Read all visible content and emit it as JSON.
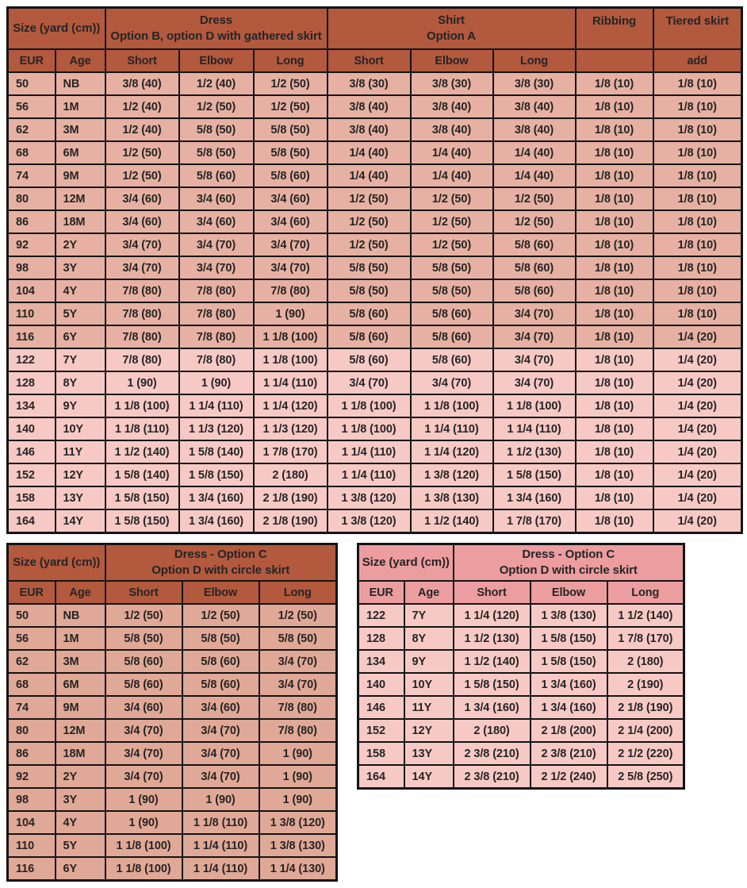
{
  "colors": {
    "header_brown": "#b2593e",
    "header_pink": "#ec9da0",
    "row_salmon": "#e6b1a2",
    "row_salmon_dark": "#e0a896",
    "row_pink": "#f7c9c5",
    "border_black": "#141414",
    "text_dark": "#262424",
    "page_bg": "#ffffff"
  },
  "main_table": {
    "size_header": "Size (yard (cm))",
    "dress_group_line1": "Dress",
    "dress_group_line2": "Option B, option D with gathered skirt",
    "shirt_group_line1": "Shirt",
    "shirt_group_line2": "Option A",
    "ribbing_group": "Ribbing",
    "tiered_group": "Tiered skirt",
    "sub_headers": [
      "EUR",
      "Age",
      "Short",
      "Elbow",
      "Long",
      "Short",
      "Elbow",
      "Long",
      "",
      "add"
    ],
    "rows": [
      {
        "tone": "salmon",
        "cells": [
          "50",
          "NB",
          "3/8 (40)",
          "1/2 (40)",
          "1/2 (50)",
          "3/8 (30)",
          "3/8 (30)",
          "3/8 (30)",
          "1/8 (10)",
          "1/8 (10)"
        ]
      },
      {
        "tone": "salmon",
        "cells": [
          "56",
          "1M",
          "1/2 (40)",
          "1/2 (50)",
          "1/2 (50)",
          "3/8 (40)",
          "3/8 (40)",
          "3/8 (40)",
          "1/8 (10)",
          "1/8 (10)"
        ]
      },
      {
        "tone": "salmon",
        "cells": [
          "62",
          "3M",
          "1/2 (40)",
          "5/8 (50)",
          "5/8 (50)",
          "3/8 (40)",
          "3/8 (40)",
          "3/8 (40)",
          "1/8 (10)",
          "1/8 (10)"
        ]
      },
      {
        "tone": "salmon",
        "cells": [
          "68",
          "6M",
          "1/2 (50)",
          "5/8 (50)",
          "5/8 (50)",
          "1/4 (40)",
          "1/4 (40)",
          "1/4 (40)",
          "1/8 (10)",
          "1/8 (10)"
        ]
      },
      {
        "tone": "salmon",
        "cells": [
          "74",
          "9M",
          "1/2 (50)",
          "5/8 (60)",
          "5/8 (60)",
          "1/4 (40)",
          "1/4 (40)",
          "1/4 (40)",
          "1/8 (10)",
          "1/8 (10)"
        ]
      },
      {
        "tone": "salmon",
        "cells": [
          "80",
          "12M",
          "3/4 (60)",
          "3/4 (60)",
          "3/4 (60)",
          "1/2 (50)",
          "1/2 (50)",
          "1/2 (50)",
          "1/8 (10)",
          "1/8 (10)"
        ]
      },
      {
        "tone": "salmon",
        "cells": [
          "86",
          "18M",
          "3/4 (60)",
          "3/4 (60)",
          "3/4 (60)",
          "1/2 (50)",
          "1/2 (50)",
          "1/2 (50)",
          "1/8 (10)",
          "1/8 (10)"
        ]
      },
      {
        "tone": "salmon",
        "cells": [
          "92",
          "2Y",
          "3/4 (70)",
          "3/4 (70)",
          "3/4 (70)",
          "1/2 (50)",
          "1/2 (50)",
          "5/8 (60)",
          "1/8 (10)",
          "1/8 (10)"
        ]
      },
      {
        "tone": "salmon",
        "cells": [
          "98",
          "3Y",
          "3/4 (70)",
          "3/4 (70)",
          "3/4 (70)",
          "5/8 (50)",
          "5/8 (50)",
          "5/8 (60)",
          "1/8 (10)",
          "1/8 (10)"
        ]
      },
      {
        "tone": "salmon",
        "cells": [
          "104",
          "4Y",
          "7/8 (80)",
          "7/8 (80)",
          "7/8 (80)",
          "5/8 (50)",
          "5/8 (50)",
          "5/8 (60)",
          "1/8 (10)",
          "1/8 (10)"
        ]
      },
      {
        "tone": "salmon",
        "cells": [
          "110",
          "5Y",
          "7/8 (80)",
          "7/8 (80)",
          "1 (90)",
          "5/8 (60)",
          "5/8 (60)",
          "3/4 (70)",
          "1/8 (10)",
          "1/8 (10)"
        ]
      },
      {
        "tone": "salmon",
        "cells": [
          "116",
          "6Y",
          "7/8 (80)",
          "7/8 (80)",
          "1 1/8 (100)",
          "5/8 (60)",
          "5/8 (60)",
          "3/4 (70)",
          "1/8 (10)",
          "1/4 (20)"
        ]
      },
      {
        "tone": "pink",
        "cells": [
          "122",
          "7Y",
          "7/8 (80)",
          "7/8 (80)",
          "1 1/8 (100)",
          "5/8 (60)",
          "5/8 (60)",
          "3/4 (70)",
          "1/8 (10)",
          "1/4 (20)"
        ]
      },
      {
        "tone": "pink",
        "cells": [
          "128",
          "8Y",
          "1 (90)",
          "1 (90)",
          "1 1/4 (110)",
          "3/4 (70)",
          "3/4 (70)",
          "3/4 (70)",
          "1/8 (10)",
          "1/4 (20)"
        ]
      },
      {
        "tone": "pink",
        "cells": [
          "134",
          "9Y",
          "1 1/8 (100)",
          "1 1/4 (110)",
          "1 1/4 (120)",
          "1 1/8 (100)",
          "1 1/8 (100)",
          "1 1/8 (100)",
          "1/8 (10)",
          "1/4 (20)"
        ]
      },
      {
        "tone": "pink",
        "cells": [
          "140",
          "10Y",
          "1 1/8 (110)",
          "1 1/3 (120)",
          "1 1/3 (120)",
          "1 1/8 (100)",
          "1 1/4 (110)",
          "1 1/4 (110)",
          "1/8 (10)",
          "1/4 (20)"
        ]
      },
      {
        "tone": "pink",
        "cells": [
          "146",
          "11Y",
          "1 1/2 (140)",
          "1 5/8 (140)",
          "1 7/8 (170)",
          "1 1/4 (110)",
          "1 1/4 (120)",
          "1 1/2 (130)",
          "1/8 (10)",
          "1/4 (20)"
        ]
      },
      {
        "tone": "pink",
        "cells": [
          "152",
          "12Y",
          "1 5/8 (140)",
          "1 5/8 (150)",
          "2 (180)",
          "1 1/4 (110)",
          "1 3/8 (120)",
          "1 5/8 (150)",
          "1/8 (10)",
          "1/4 (20)"
        ]
      },
      {
        "tone": "pink",
        "cells": [
          "158",
          "13Y",
          "1 5/8 (150)",
          "1 3/4 (160)",
          "2 1/8 (190)",
          "1 3/8 (120)",
          "1 3/8 (130)",
          "1 3/4 (160)",
          "1/8 (10)",
          "1/4 (20)"
        ]
      },
      {
        "tone": "pink",
        "cells": [
          "164",
          "14Y",
          "1 5/8 (150)",
          "1 3/4 (160)",
          "2 1/8 (190)",
          "1 3/8 (120)",
          "1 1/2 (140)",
          "1 7/8 (170)",
          "1/8 (10)",
          "1/4 (20)"
        ]
      }
    ]
  },
  "bottom_left_table": {
    "size_header": "Size (yard (cm))",
    "title_line1": "Dress - Option C",
    "title_line2": "Option D with circle skirt",
    "sub_headers": [
      "EUR",
      "Age",
      "Short",
      "Elbow",
      "Long"
    ],
    "rows": [
      {
        "tone": "salmon_dark",
        "cells": [
          "50",
          "NB",
          "1/2 (50)",
          "1/2 (50)",
          "1/2 (50)"
        ]
      },
      {
        "tone": "salmon_dark",
        "cells": [
          "56",
          "1M",
          "5/8 (50)",
          "5/8 (50)",
          "5/8 (50)"
        ]
      },
      {
        "tone": "salmon_dark",
        "cells": [
          "62",
          "3M",
          "5/8 (60)",
          "5/8 (60)",
          "3/4 (70)"
        ]
      },
      {
        "tone": "salmon_dark",
        "cells": [
          "68",
          "6M",
          "5/8 (60)",
          "5/8 (60)",
          "3/4 (70)"
        ]
      },
      {
        "tone": "salmon_dark",
        "cells": [
          "74",
          "9M",
          "3/4 (60)",
          "3/4 (60)",
          "7/8 (80)"
        ]
      },
      {
        "tone": "salmon_dark",
        "cells": [
          "80",
          "12M",
          "3/4 (70)",
          "3/4 (70)",
          "7/8 (80)"
        ]
      },
      {
        "tone": "salmon_dark",
        "cells": [
          "86",
          "18M",
          "3/4 (70)",
          "3/4 (70)",
          "1 (90)"
        ]
      },
      {
        "tone": "salmon_dark",
        "cells": [
          "92",
          "2Y",
          "3/4 (70)",
          "3/4 (70)",
          "1 (90)"
        ]
      },
      {
        "tone": "salmon_dark",
        "cells": [
          "98",
          "3Y",
          "1 (90)",
          "1 (90)",
          "1 (90)"
        ]
      },
      {
        "tone": "salmon_dark",
        "cells": [
          "104",
          "4Y",
          "1 (90)",
          "1 1/8 (110)",
          "1 3/8 (120)"
        ]
      },
      {
        "tone": "salmon_dark",
        "cells": [
          "110",
          "5Y",
          "1 1/8 (100)",
          "1 1/4 (110)",
          "1 3/8 (130)"
        ]
      },
      {
        "tone": "salmon_dark",
        "cells": [
          "116",
          "6Y",
          "1 1/8 (100)",
          "1 1/4 (110)",
          "1 1/4 (130)"
        ]
      }
    ]
  },
  "bottom_right_table": {
    "size_header": "Size (yard (cm))",
    "title_line1": "Dress - Option C",
    "title_line2": "Option D with circle skirt",
    "sub_headers": [
      "EUR",
      "Age",
      "Short",
      "Elbow",
      "Long"
    ],
    "rows": [
      {
        "tone": "pink",
        "cells": [
          "122",
          "7Y",
          "1 1/4 (120)",
          "1 3/8 (130)",
          "1 1/2 (140)"
        ]
      },
      {
        "tone": "pink",
        "cells": [
          "128",
          "8Y",
          "1 1/2 (130)",
          "1 5/8 (150)",
          "1 7/8 (170)"
        ]
      },
      {
        "tone": "pink",
        "cells": [
          "134",
          "9Y",
          "1 1/2 (140)",
          "1 5/8 (150)",
          "2 (180)"
        ]
      },
      {
        "tone": "pink",
        "cells": [
          "140",
          "10Y",
          "1 5/8 (150)",
          "1 3/4 (160)",
          "2 (190)"
        ]
      },
      {
        "tone": "pink",
        "cells": [
          "146",
          "11Y",
          "1 3/4 (160)",
          "1 3/4 (160)",
          "2 1/8 (190)"
        ]
      },
      {
        "tone": "pink",
        "cells": [
          "152",
          "12Y",
          "2 (180)",
          "2 1/8 (200)",
          "2 1/4 (200)"
        ]
      },
      {
        "tone": "pink",
        "cells": [
          "158",
          "13Y",
          "2 3/8 (210)",
          "2 3/8 (210)",
          "2 1/2 (220)"
        ]
      },
      {
        "tone": "pink",
        "cells": [
          "164",
          "14Y",
          "2 3/8 (210)",
          "2 1/2 (240)",
          "2 5/8 (250)"
        ]
      }
    ]
  }
}
